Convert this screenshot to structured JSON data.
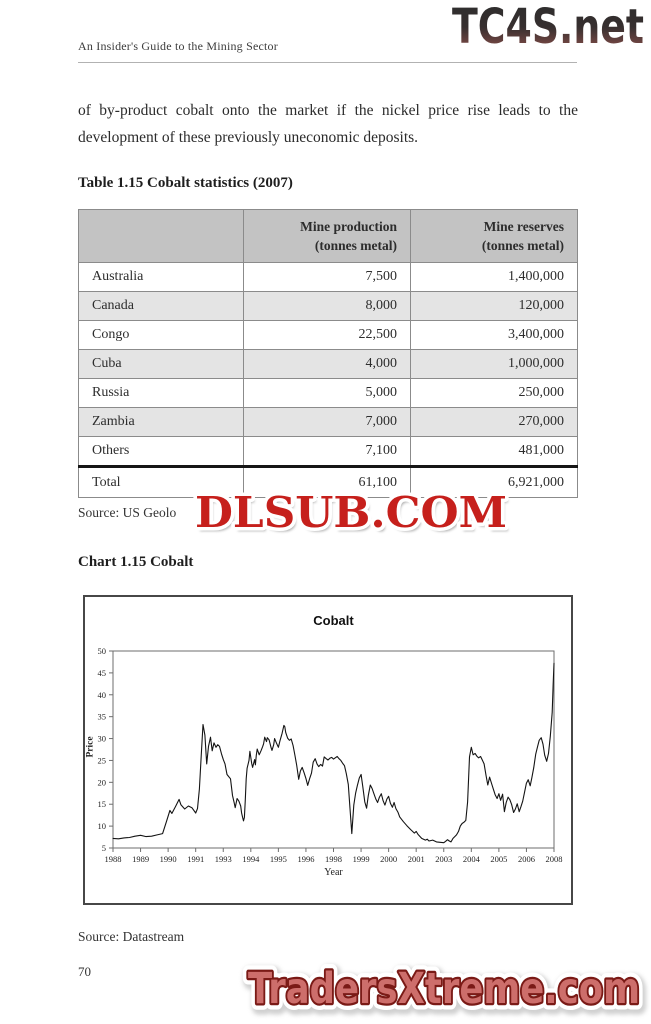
{
  "page": {
    "running_head": "An Insider's Guide to the Mining Sector",
    "page_number": "70",
    "paragraph_line1": "of by-product cobalt onto the market if the nickel price rise leads to the",
    "paragraph_line2": "development of these previously uneconomic deposits."
  },
  "watermarks": {
    "top": {
      "text": "TC4S.net",
      "color_top": "#2d2d2d",
      "color_bottom": "#8f5e57"
    },
    "middle": {
      "text": "DLSUB.COM",
      "fill": "#c6201c",
      "stroke": "#ffffff",
      "shadow": "#9a9a9a"
    },
    "bottom": {
      "text": "TradersXtreme.com",
      "fill": "#cd6e6b",
      "stroke": "#7a1a16",
      "glow": "#ffffff"
    }
  },
  "table": {
    "caption": "Table 1.15 Cobalt statistics (2007)",
    "headers": {
      "col1": "",
      "col2_line1": "Mine production",
      "col2_line2": "(tonnes metal)",
      "col3_line1": "Mine reserves",
      "col3_line2": "(tonnes metal)"
    },
    "rows": [
      {
        "label": "Australia",
        "production": "7,500",
        "reserves": "1,400,000"
      },
      {
        "label": "Canada",
        "production": "8,000",
        "reserves": "120,000"
      },
      {
        "label": "Congo",
        "production": "22,500",
        "reserves": "3,400,000"
      },
      {
        "label": "Cuba",
        "production": "4,000",
        "reserves": "1,000,000"
      },
      {
        "label": "Russia",
        "production": "5,000",
        "reserves": "250,000"
      },
      {
        "label": "Zambia",
        "production": "7,000",
        "reserves": "270,000"
      },
      {
        "label": "Others",
        "production": "7,100",
        "reserves": "481,000"
      }
    ],
    "total": {
      "label": "Total",
      "production": "61,100",
      "reserves": "6,921,000"
    },
    "source_visible": "Source: US Geolo"
  },
  "chart_section": {
    "caption": "Chart 1.15 Cobalt",
    "source": "Source: Datastream"
  },
  "chart_data": {
    "type": "line",
    "title": "Cobalt",
    "xlabel": "Year",
    "ylabel": "Price",
    "xlim": [
      1988,
      2008
    ],
    "ylim": [
      5,
      50
    ],
    "grid": false,
    "legend": "none",
    "line_color": "#141414",
    "y_ticks": [
      5,
      10,
      15,
      20,
      25,
      30,
      35,
      40,
      45,
      50
    ],
    "x_tick_labels": [
      "1988",
      "1989",
      "1990",
      "1991",
      "1993",
      "1994",
      "1995",
      "1996",
      "1998",
      "1999",
      "2000",
      "2001",
      "2003",
      "2004",
      "2005",
      "2006",
      "2008"
    ],
    "series": [
      {
        "name": "Cobalt price",
        "x": [
          1988.0,
          1988.25,
          1988.5,
          1988.75,
          1989.0,
          1989.25,
          1989.5,
          1989.75,
          1990.0,
          1990.25,
          1990.42,
          1990.58,
          1990.67,
          1990.83,
          1991.0,
          1991.08,
          1991.25,
          1991.42,
          1991.58,
          1991.75,
          1991.83,
          1991.92,
          1992.0,
          1992.08,
          1992.17,
          1992.25,
          1992.33,
          1992.42,
          1992.5,
          1992.58,
          1992.67,
          1992.75,
          1992.83,
          1992.92,
          1993.0,
          1993.08,
          1993.17,
          1993.33,
          1993.42,
          1993.5,
          1993.54,
          1993.63,
          1993.71,
          1993.79,
          1993.83,
          1993.88,
          1993.92,
          1993.96,
          1994.0,
          1994.04,
          1994.08,
          1994.17,
          1994.21,
          1994.29,
          1994.33,
          1994.42,
          1994.46,
          1994.5,
          1994.54,
          1994.63,
          1994.71,
          1994.79,
          1994.83,
          1994.88,
          1994.96,
          1995.0,
          1995.08,
          1995.17,
          1995.21,
          1995.29,
          1995.33,
          1995.42,
          1995.5,
          1995.58,
          1995.67,
          1995.75,
          1995.79,
          1995.83,
          1995.92,
          1996.0,
          1996.08,
          1996.17,
          1996.25,
          1996.33,
          1996.42,
          1996.5,
          1996.58,
          1996.67,
          1996.75,
          1996.83,
          1996.92,
          1997.0,
          1997.08,
          1997.17,
          1997.25,
          1997.33,
          1997.42,
          1997.5,
          1997.58,
          1997.67,
          1997.75,
          1997.83,
          1997.92,
          1998.0,
          1998.08,
          1998.17,
          1998.25,
          1998.33,
          1998.42,
          1998.5,
          1998.58,
          1998.67,
          1998.75,
          1998.83,
          1998.92,
          1999.0,
          1999.08,
          1999.17,
          1999.25,
          1999.33,
          1999.42,
          1999.5,
          1999.58,
          1999.67,
          1999.75,
          1999.83,
          1999.92,
          2000.0,
          2000.08,
          2000.17,
          2000.25,
          2000.33,
          2000.42,
          2000.5,
          2000.58,
          2000.67,
          2000.75,
          2000.83,
          2000.92,
          2001.0,
          2001.17,
          2001.33,
          2001.5,
          2001.67,
          2001.75,
          2001.83,
          2002.0,
          2002.17,
          2002.25,
          2002.33,
          2002.5,
          2002.67,
          2002.83,
          2003.0,
          2003.08,
          2003.17,
          2003.25,
          2003.33,
          2003.42,
          2003.58,
          2003.67,
          2003.75,
          2003.83,
          2003.92,
          2004.0,
          2004.08,
          2004.17,
          2004.25,
          2004.33,
          2004.42,
          2004.5,
          2004.58,
          2004.67,
          2004.75,
          2004.83,
          2004.92,
          2005.0,
          2005.08,
          2005.17,
          2005.25,
          2005.33,
          2005.42,
          2005.5,
          2005.58,
          2005.67,
          2005.75,
          2005.83,
          2005.92,
          2006.0,
          2006.08,
          2006.17,
          2006.25,
          2006.33,
          2006.42,
          2006.5,
          2006.58,
          2006.67,
          2006.75,
          2006.83,
          2006.92,
          2007.0,
          2007.08,
          2007.17,
          2007.25,
          2007.33,
          2007.42,
          2007.5,
          2007.58,
          2007.67,
          2007.75,
          2007.83,
          2007.92,
          2007.96,
          2008.0
        ],
        "y": [
          7.2,
          7.1,
          7.3,
          7.4,
          7.7,
          7.9,
          7.6,
          7.7,
          8.0,
          8.3,
          11.0,
          13.6,
          12.9,
          14.4,
          16.1,
          14.9,
          13.9,
          14.6,
          14.2,
          13.0,
          14.0,
          18.5,
          26.0,
          33.2,
          30.8,
          24.2,
          28.2,
          30.3,
          27.2,
          29.0,
          28.0,
          28.6,
          28.2,
          26.5,
          25.2,
          24.2,
          21.8,
          20.8,
          17.0,
          15.2,
          14.2,
          16.3,
          15.7,
          14.6,
          13.0,
          11.9,
          11.2,
          12.0,
          16.0,
          20.8,
          23.2,
          25.0,
          27.1,
          24.3,
          23.4,
          25.2,
          24.0,
          26.2,
          27.6,
          26.3,
          27.2,
          28.2,
          28.8,
          30.3,
          29.3,
          30.2,
          29.7,
          27.9,
          27.3,
          28.6,
          30.0,
          28.9,
          28.0,
          29.6,
          31.2,
          33.0,
          32.7,
          31.4,
          30.1,
          29.6,
          29.9,
          28.4,
          26.2,
          23.9,
          20.7,
          22.6,
          23.4,
          22.1,
          20.9,
          19.3,
          20.9,
          22.1,
          24.6,
          25.4,
          24.2,
          23.6,
          24.1,
          23.7,
          25.8,
          25.4,
          25.1,
          25.5,
          25.7,
          25.3,
          25.6,
          25.9,
          25.4,
          25.0,
          24.3,
          23.8,
          22.0,
          19.5,
          14.0,
          8.3,
          14.8,
          17.5,
          19.2,
          21.0,
          21.8,
          19.0,
          15.5,
          14.1,
          17.0,
          19.4,
          18.6,
          17.4,
          16.2,
          15.4,
          16.6,
          17.4,
          15.8,
          14.8,
          16.2,
          16.8,
          15.2,
          14.3,
          15.4,
          14.0,
          13.2,
          12.1,
          11.0,
          10.1,
          9.2,
          8.4,
          8.8,
          8.1,
          7.2,
          6.8,
          7.0,
          6.6,
          6.8,
          6.4,
          6.3,
          6.2,
          6.5,
          6.9,
          6.6,
          6.4,
          7.2,
          8.0,
          8.8,
          10.0,
          10.6,
          10.9,
          11.3,
          15.5,
          25.8,
          28.0,
          26.3,
          26.6,
          26.0,
          25.6,
          25.9,
          25.1,
          24.2,
          21.5,
          19.4,
          21.2,
          19.7,
          18.4,
          17.2,
          16.3,
          17.4,
          15.9,
          17.3,
          13.3,
          15.4,
          16.6,
          16.0,
          14.9,
          13.1,
          13.9,
          15.1,
          13.3,
          14.4,
          15.7,
          17.9,
          19.8,
          20.6,
          19.2,
          21.1,
          23.3,
          26.4,
          28.1,
          29.6,
          30.2,
          28.7,
          26.2,
          24.8,
          26.6,
          30.5,
          36.0,
          42.0,
          47.2
        ]
      }
    ]
  }
}
